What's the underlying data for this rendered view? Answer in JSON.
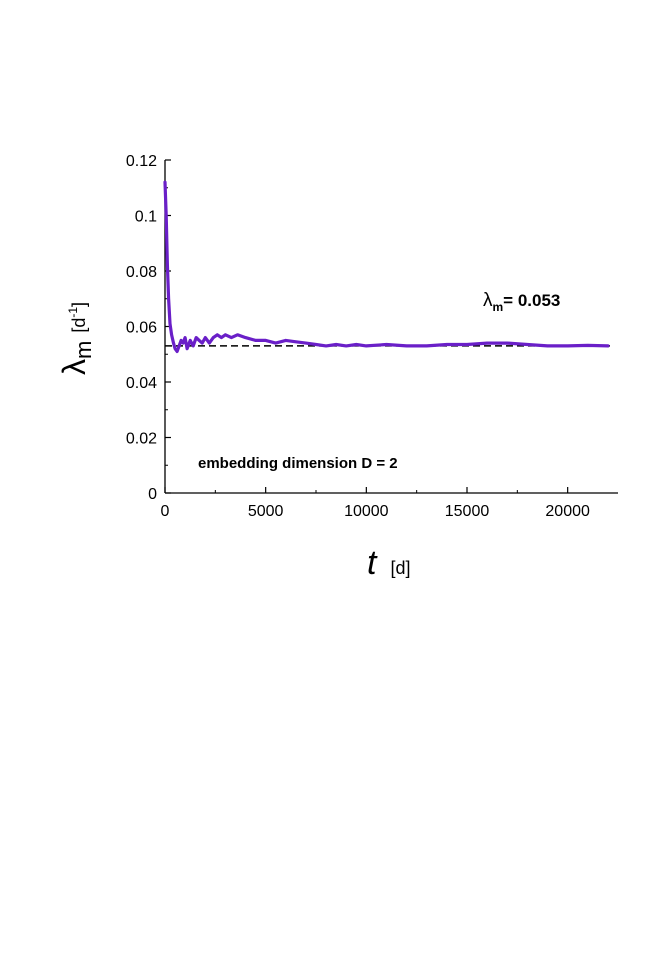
{
  "chart_data": {
    "type": "line",
    "xlabel": {
      "symbol": "t",
      "unit": "[d]"
    },
    "ylabel": {
      "symbol": "λ",
      "subscript": "m",
      "unit_base": "[d",
      "unit_sup": "-1",
      "unit_close": "]"
    },
    "xlim": [
      0,
      22500
    ],
    "ylim": [
      0,
      0.12
    ],
    "x_ticks": [
      0,
      5000,
      10000,
      15000,
      20000
    ],
    "x_tick_labels": [
      "0",
      "5000",
      "10000",
      "15000",
      "20000"
    ],
    "y_ticks": [
      0,
      0.02,
      0.04,
      0.06,
      0.08,
      0.1,
      0.12
    ],
    "y_tick_labels": [
      "0",
      "0.02",
      "0.04",
      "0.06",
      "0.08",
      "0.1",
      "0.12"
    ],
    "grid": false,
    "series": [
      {
        "color": "#6a1fc8",
        "x": [
          0,
          60,
          120,
          180,
          250,
          330,
          420,
          500,
          600,
          700,
          800,
          900,
          1000,
          1100,
          1250,
          1400,
          1550,
          1700,
          1850,
          2000,
          2200,
          2400,
          2600,
          2800,
          3000,
          3300,
          3600,
          4000,
          4500,
          5000,
          5500,
          6000,
          6500,
          7000,
          7500,
          8000,
          8500,
          9000,
          9500,
          10000,
          11000,
          12000,
          13000,
          14000,
          15000,
          16000,
          17000,
          18000,
          19000,
          20000,
          21000,
          22000
        ],
        "y": [
          0.112,
          0.1,
          0.082,
          0.07,
          0.061,
          0.057,
          0.054,
          0.052,
          0.051,
          0.053,
          0.055,
          0.054,
          0.056,
          0.052,
          0.055,
          0.053,
          0.056,
          0.055,
          0.054,
          0.056,
          0.054,
          0.056,
          0.057,
          0.056,
          0.057,
          0.056,
          0.057,
          0.056,
          0.055,
          0.055,
          0.054,
          0.055,
          0.0545,
          0.054,
          0.0535,
          0.053,
          0.0535,
          0.053,
          0.0535,
          0.053,
          0.0535,
          0.053,
          0.053,
          0.0535,
          0.0535,
          0.054,
          0.054,
          0.0535,
          0.053,
          0.053,
          0.0532,
          0.053
        ]
      }
    ],
    "reference_line": {
      "y": 0.053,
      "style": "dashed",
      "color": "#000000"
    },
    "annotations": {
      "lambda_value": {
        "symbol": "λ",
        "subscript": "m",
        "text": "= 0.053"
      },
      "embedding": "embedding dimension D = 2"
    }
  }
}
